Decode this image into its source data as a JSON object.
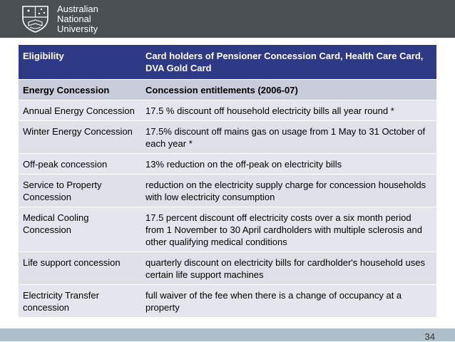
{
  "logo": {
    "line1": "Australian",
    "line2": "National",
    "line3": "University"
  },
  "table": {
    "header": [
      "Eligibility",
      "Card holders of Pensioner Concession Card, Health Care Card, DVA Gold Card"
    ],
    "subheader": [
      "Energy Concession",
      "Concession entitlements (2006-07)"
    ],
    "rows": [
      [
        "Annual Energy Concession",
        "17.5 % discount off household electricity bills all year round *"
      ],
      [
        "Winter Energy Concession",
        "17.5% discount off mains gas on usage from 1 May to 31 October of each year *"
      ],
      [
        "Off-peak concession",
        "13% reduction on the off-peak on electricity bills"
      ],
      [
        "Service to Property Concession",
        "reduction on the electricity supply charge for concession households with low electricity consumption"
      ],
      [
        "Medical Cooling Concession",
        "17.5 percent discount off electricity costs over a six month period from 1 November to 30 April cardholders with multiple sclerosis and other qualifying medical conditions"
      ],
      [
        "Life support concession",
        "quarterly discount on electricity bills for cardholder's household uses certain life support machines"
      ],
      [
        "Electricity Transfer concession",
        "full waiver of the fee when there is a change of occupancy at a property"
      ]
    ]
  },
  "slide_number": "34",
  "colors": {
    "header_bar": "#4a4f54",
    "table_header": "#2e3a85",
    "subheader_row": "#c9ccdb",
    "body_row": "#e5e6ed",
    "footer_bar": "#aebfcb"
  }
}
